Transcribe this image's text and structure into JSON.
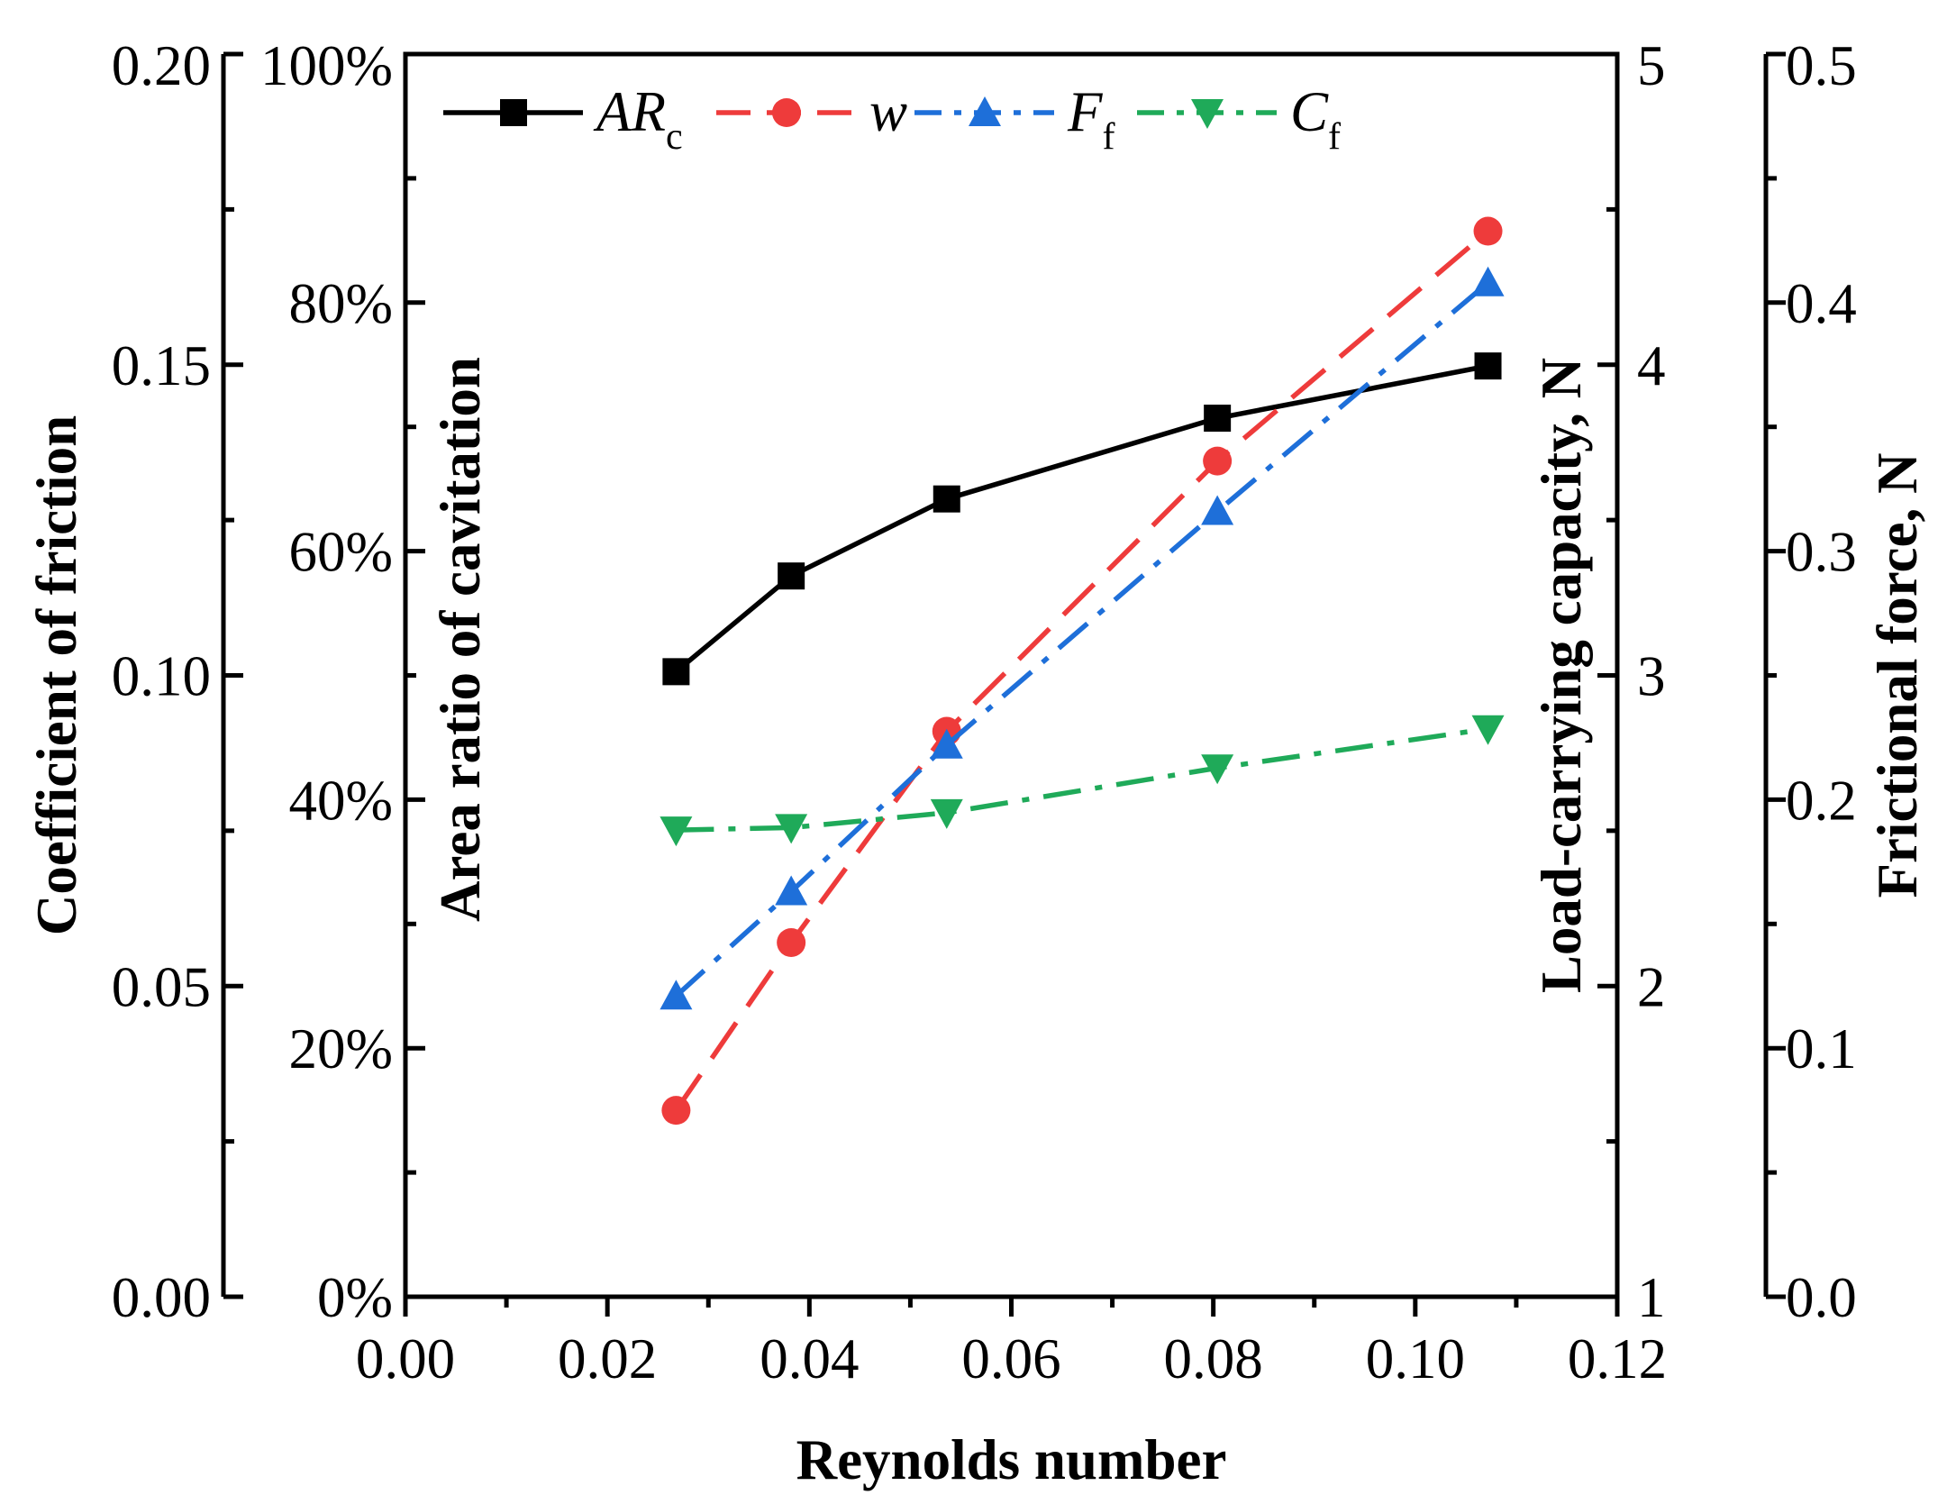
{
  "chart_data": {
    "type": "line",
    "xlabel": "Reynolds number",
    "xlim": [
      0,
      0.12
    ],
    "x_ticks": [
      "0.00",
      "0.02",
      "0.04",
      "0.06",
      "0.08",
      "0.10",
      "0.12"
    ],
    "x": [
      0.0268,
      0.0382,
      0.0536,
      0.0804,
      0.1072
    ],
    "axes": [
      {
        "id": "cof",
        "label": "Coefficient of friction",
        "range": [
          0,
          0.2
        ],
        "ticks": [
          "0.00",
          "0.05",
          "0.10",
          "0.15",
          "0.20"
        ]
      },
      {
        "id": "arc",
        "label": "Area ratio of cavitation",
        "range": [
          0,
          100
        ],
        "ticks": [
          "0%",
          "20%",
          "40%",
          "60%",
          "80%",
          "100%"
        ]
      },
      {
        "id": "load",
        "label": "Load-carrying capacity, N",
        "range": [
          1,
          5
        ],
        "ticks": [
          "1",
          "2",
          "3",
          "4",
          "5"
        ]
      },
      {
        "id": "force",
        "label": "Frictional force, N",
        "range": [
          0,
          0.5
        ],
        "ticks": [
          "0.0",
          "0.1",
          "0.2",
          "0.3",
          "0.4",
          "0.5"
        ]
      }
    ],
    "series": [
      {
        "name": "AR",
        "subscript": "c",
        "axis": "arc",
        "color": "#000000",
        "marker": "square",
        "dash": "solid",
        "values": [
          50.3,
          58.0,
          64.2,
          70.7,
          74.9
        ]
      },
      {
        "name": "w",
        "subscript": "",
        "axis": "load",
        "color": "#EE3B3B",
        "marker": "circle",
        "dash": "dash",
        "values": [
          1.6,
          2.14,
          2.82,
          3.69,
          4.43
        ]
      },
      {
        "name": "F",
        "subscript": "f",
        "axis": "force",
        "color": "#1E6FD9",
        "marker": "triangle-up",
        "dash": "dashdot",
        "values": [
          0.121,
          0.163,
          0.222,
          0.316,
          0.408
        ]
      },
      {
        "name": "C",
        "subscript": "f",
        "axis": "cof",
        "color": "#1FAA59",
        "marker": "triangle-down",
        "dash": "dashdot",
        "values": [
          0.0751,
          0.0755,
          0.0779,
          0.0851,
          0.0914
        ]
      }
    ],
    "legend": "top, horizontal"
  }
}
